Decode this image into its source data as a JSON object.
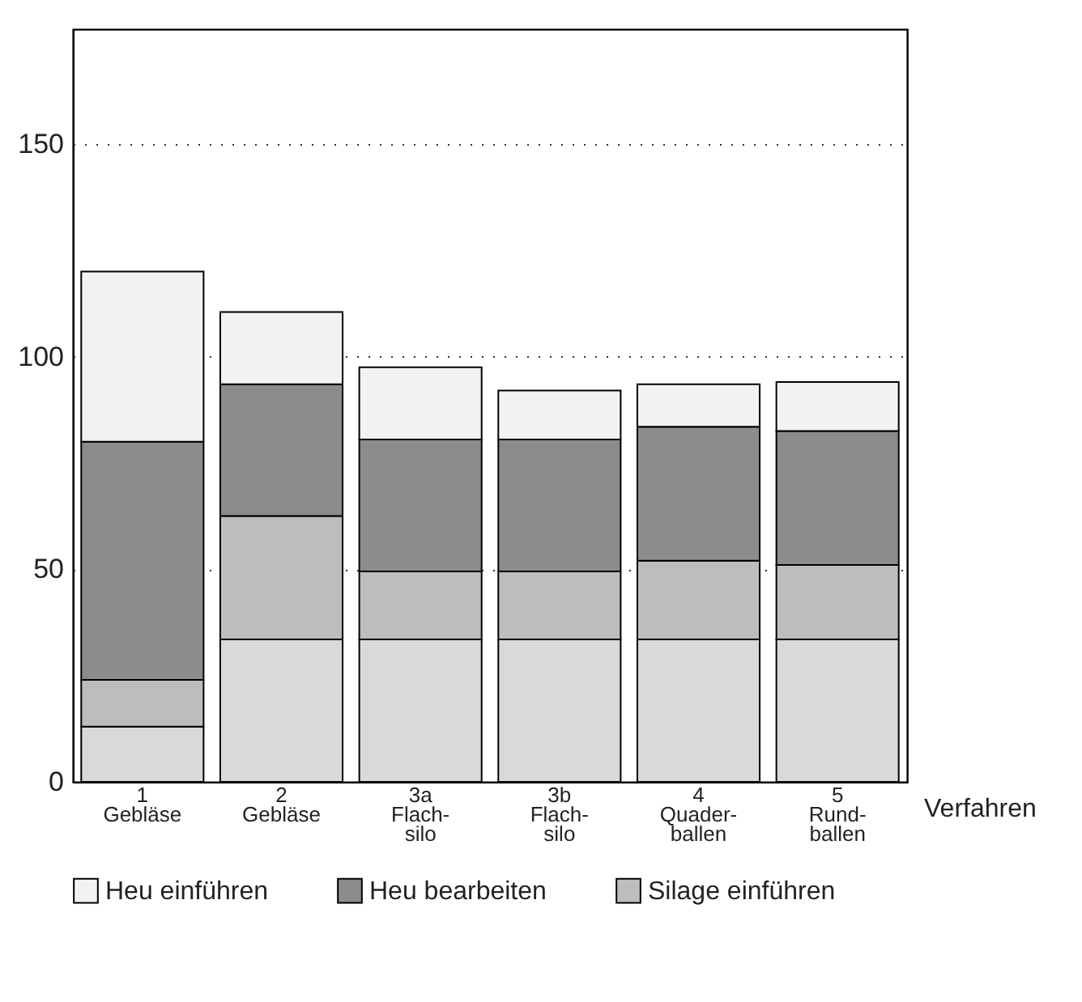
{
  "chart_data": {
    "type": "bar",
    "stacked": true,
    "xlabel": "Verfahren",
    "categories": [
      "1\nGebläse",
      "2\nGebläse",
      "3a\nFlach-\nsilo",
      "3b\nFlach-\nsilo",
      "4\nQuader-\nballen",
      "5\nRund-\nballen"
    ],
    "series": [
      {
        "color": "#d9d9d9",
        "values": [
          13,
          33.5,
          33.5,
          33.5,
          33.5,
          33.5
        ]
      },
      {
        "name": "Silage einführen",
        "color": "#bdbdbd",
        "values": [
          11,
          29,
          16,
          16,
          18.5,
          17.5
        ]
      },
      {
        "name": "Heu bearbeiten",
        "color": "#8c8c8c",
        "values": [
          56,
          31,
          31,
          31,
          31.5,
          31.5
        ]
      },
      {
        "name": "Heu einführen",
        "color": "#f2f2f2",
        "values": [
          40,
          17,
          17,
          11.5,
          10,
          11.5
        ]
      }
    ],
    "ylim": [
      0,
      177
    ],
    "yticks": [
      0,
      50,
      100,
      150
    ],
    "grid": "y",
    "line_style": "dotted",
    "legend": "bottom"
  }
}
